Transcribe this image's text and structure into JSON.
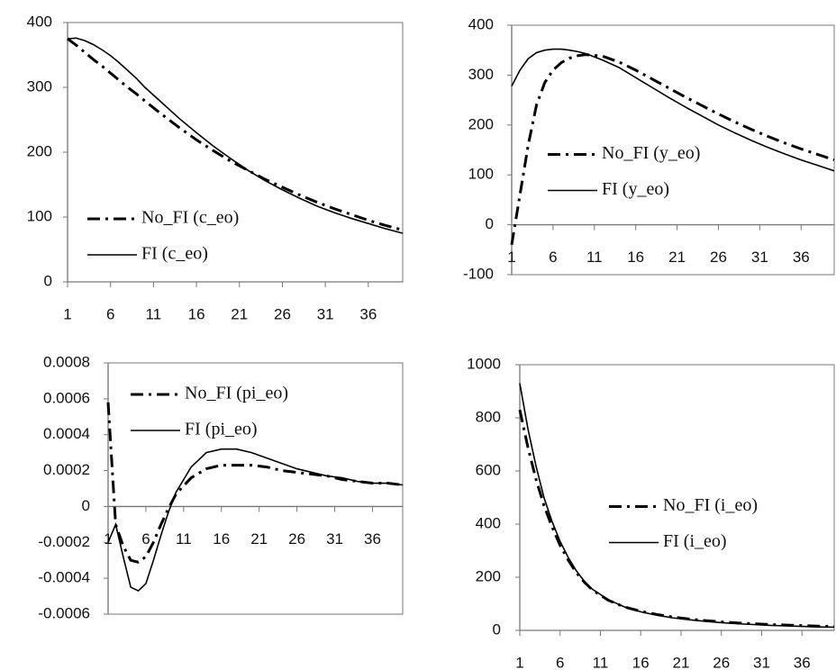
{
  "chart_data": [
    {
      "type": "line",
      "legend": "lower left",
      "x": [
        1,
        2,
        3,
        4,
        5,
        6,
        7,
        8,
        9,
        10,
        12,
        14,
        16,
        18,
        20,
        22,
        24,
        26,
        28,
        30,
        32,
        34,
        36,
        38,
        40
      ],
      "xlim": [
        1,
        40
      ],
      "xticks": [
        1,
        6,
        11,
        16,
        21,
        26,
        31,
        36
      ],
      "ylim": [
        0,
        400
      ],
      "yticks": [
        0,
        100,
        200,
        300,
        400
      ],
      "series": [
        {
          "name": "No_FI (c_eo)",
          "color": "#000000",
          "linestyle": "dashdot",
          "values": [
            375,
            365,
            354,
            343,
            333,
            322,
            311,
            300,
            290,
            279,
            258,
            238,
            219,
            202,
            186,
            172,
            158,
            146,
            134,
            123,
            113,
            104,
            95,
            87,
            80
          ]
        },
        {
          "name": "FI (c_eo)",
          "color": "#000000",
          "linestyle": "solid",
          "values": [
            375,
            376,
            372,
            366,
            358,
            349,
            338,
            326,
            314,
            300,
            276,
            252,
            230,
            209,
            190,
            172,
            156,
            142,
            129,
            117,
            107,
            98,
            90,
            82,
            75
          ]
        }
      ]
    },
    {
      "type": "line",
      "legend": "center left",
      "x": [
        1,
        2,
        3,
        4,
        5,
        6,
        7,
        8,
        9,
        10,
        12,
        14,
        16,
        18,
        20,
        22,
        24,
        26,
        28,
        30,
        32,
        34,
        36,
        38,
        40
      ],
      "xlim": [
        1,
        40
      ],
      "xticks": [
        1,
        6,
        11,
        16,
        21,
        26,
        31,
        36
      ],
      "ylim": [
        -100,
        400
      ],
      "yticks": [
        -100,
        0,
        100,
        200,
        300,
        400
      ],
      "series": [
        {
          "name": "No_FI (y_eo)",
          "color": "#000000",
          "linestyle": "dashdot",
          "values": [
            -40,
            60,
            160,
            240,
            285,
            310,
            325,
            334,
            339,
            341,
            338,
            326,
            310,
            292,
            274,
            256,
            239,
            222,
            206,
            191,
            177,
            164,
            152,
            141,
            130
          ]
        },
        {
          "name": "FI (y_eo)",
          "color": "#000000",
          "linestyle": "solid",
          "values": [
            278,
            310,
            333,
            345,
            350,
            352,
            352,
            350,
            347,
            343,
            330,
            315,
            295,
            275,
            255,
            236,
            218,
            200,
            184,
            169,
            155,
            142,
            130,
            119,
            108
          ]
        }
      ]
    },
    {
      "type": "line",
      "legend": "upper left",
      "x": [
        1,
        2,
        3,
        4,
        5,
        6,
        7,
        8,
        9,
        10,
        12,
        14,
        16,
        18,
        20,
        22,
        24,
        26,
        28,
        30,
        32,
        34,
        36,
        38,
        40
      ],
      "xlim": [
        1,
        40
      ],
      "xticks": [
        1,
        6,
        11,
        16,
        21,
        26,
        31,
        36
      ],
      "ylim": [
        -0.0006,
        0.0008
      ],
      "yticks": [
        -0.0006,
        -0.0004,
        -0.0002,
        0,
        0.0002,
        0.0004,
        0.0006,
        0.0008
      ],
      "series": [
        {
          "name": "No_FI (pi_eo)",
          "color": "#000000",
          "linestyle": "dashdot",
          "values": [
            0.00058,
            -0.0001,
            -0.00022,
            -0.0003,
            -0.00031,
            -0.00028,
            -0.0002,
            -0.0001,
            -1e-05,
            7e-05,
            0.00016,
            0.00021,
            0.00023,
            0.00023,
            0.00023,
            0.00022,
            0.0002,
            0.00019,
            0.00018,
            0.00017,
            0.00015,
            0.00014,
            0.00013,
            0.00013,
            0.00012
          ]
        },
        {
          "name": "FI (pi_eo)",
          "color": "#000000",
          "linestyle": "solid",
          "values": [
            -0.0002,
            -0.0001,
            -0.00028,
            -0.00045,
            -0.00047,
            -0.00043,
            -0.0003,
            -0.00016,
            -3e-05,
            8e-05,
            0.00022,
            0.0003,
            0.00032,
            0.00032,
            0.0003,
            0.00027,
            0.00024,
            0.00021,
            0.00019,
            0.00017,
            0.00016,
            0.00014,
            0.00013,
            0.00013,
            0.00012
          ]
        }
      ]
    },
    {
      "type": "line",
      "legend": "center right",
      "x": [
        1,
        2,
        3,
        4,
        5,
        6,
        7,
        8,
        9,
        10,
        12,
        14,
        16,
        18,
        20,
        22,
        24,
        26,
        28,
        30,
        32,
        34,
        36,
        38,
        40
      ],
      "xlim": [
        1,
        40
      ],
      "xticks": [
        1,
        6,
        11,
        16,
        21,
        26,
        31,
        36
      ],
      "ylim": [
        0,
        1000
      ],
      "yticks": [
        0,
        200,
        400,
        600,
        800,
        1000
      ],
      "series": [
        {
          "name": "No_FI (i_eo)",
          "color": "#000000",
          "linestyle": "dashdot",
          "values": [
            830,
            690,
            570,
            470,
            390,
            320,
            265,
            218,
            182,
            152,
            113,
            88,
            72,
            60,
            50,
            43,
            37,
            32,
            28,
            25,
            22,
            20,
            18,
            16,
            15
          ]
        },
        {
          "name": "FI (i_eo)",
          "color": "#000000",
          "linestyle": "solid",
          "values": [
            930,
            760,
            620,
            500,
            410,
            335,
            275,
            225,
            185,
            155,
            115,
            88,
            70,
            57,
            47,
            40,
            34,
            29,
            25,
            22,
            19,
            17,
            15,
            13,
            12
          ]
        }
      ]
    }
  ]
}
